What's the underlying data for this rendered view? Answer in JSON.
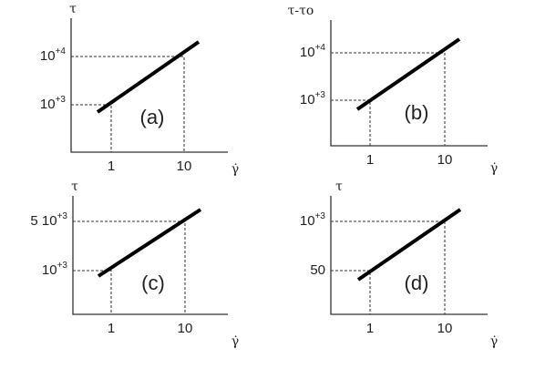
{
  "panels": [
    {
      "label": "(a)",
      "y_label": "τ",
      "x_label": "γ̇",
      "y_ticks": [
        {
          "base": "10",
          "exp": "+4"
        },
        {
          "base": "10",
          "exp": "+3"
        }
      ],
      "x_ticks": [
        "1",
        "10"
      ]
    },
    {
      "label": "(b)",
      "y_label": "τ-τo",
      "x_label": "γ̇",
      "y_ticks": [
        {
          "base": "10",
          "exp": "+4"
        },
        {
          "base": "10",
          "exp": "+3"
        }
      ],
      "x_ticks": [
        "1",
        "10"
      ]
    },
    {
      "label": "(c)",
      "y_label": "τ",
      "x_label": "γ̇",
      "y_ticks": [
        {
          "base": "5 10",
          "exp": "+3"
        },
        {
          "base": "10",
          "exp": "+3"
        }
      ],
      "x_ticks": [
        "1",
        "10"
      ]
    },
    {
      "label": "(d)",
      "y_label": "τ",
      "x_label": "γ̇",
      "y_ticks": [
        {
          "base": "10",
          "exp": "+3"
        },
        {
          "base": "50",
          "exp": ""
        }
      ],
      "x_ticks": [
        "1",
        "10"
      ]
    }
  ]
}
